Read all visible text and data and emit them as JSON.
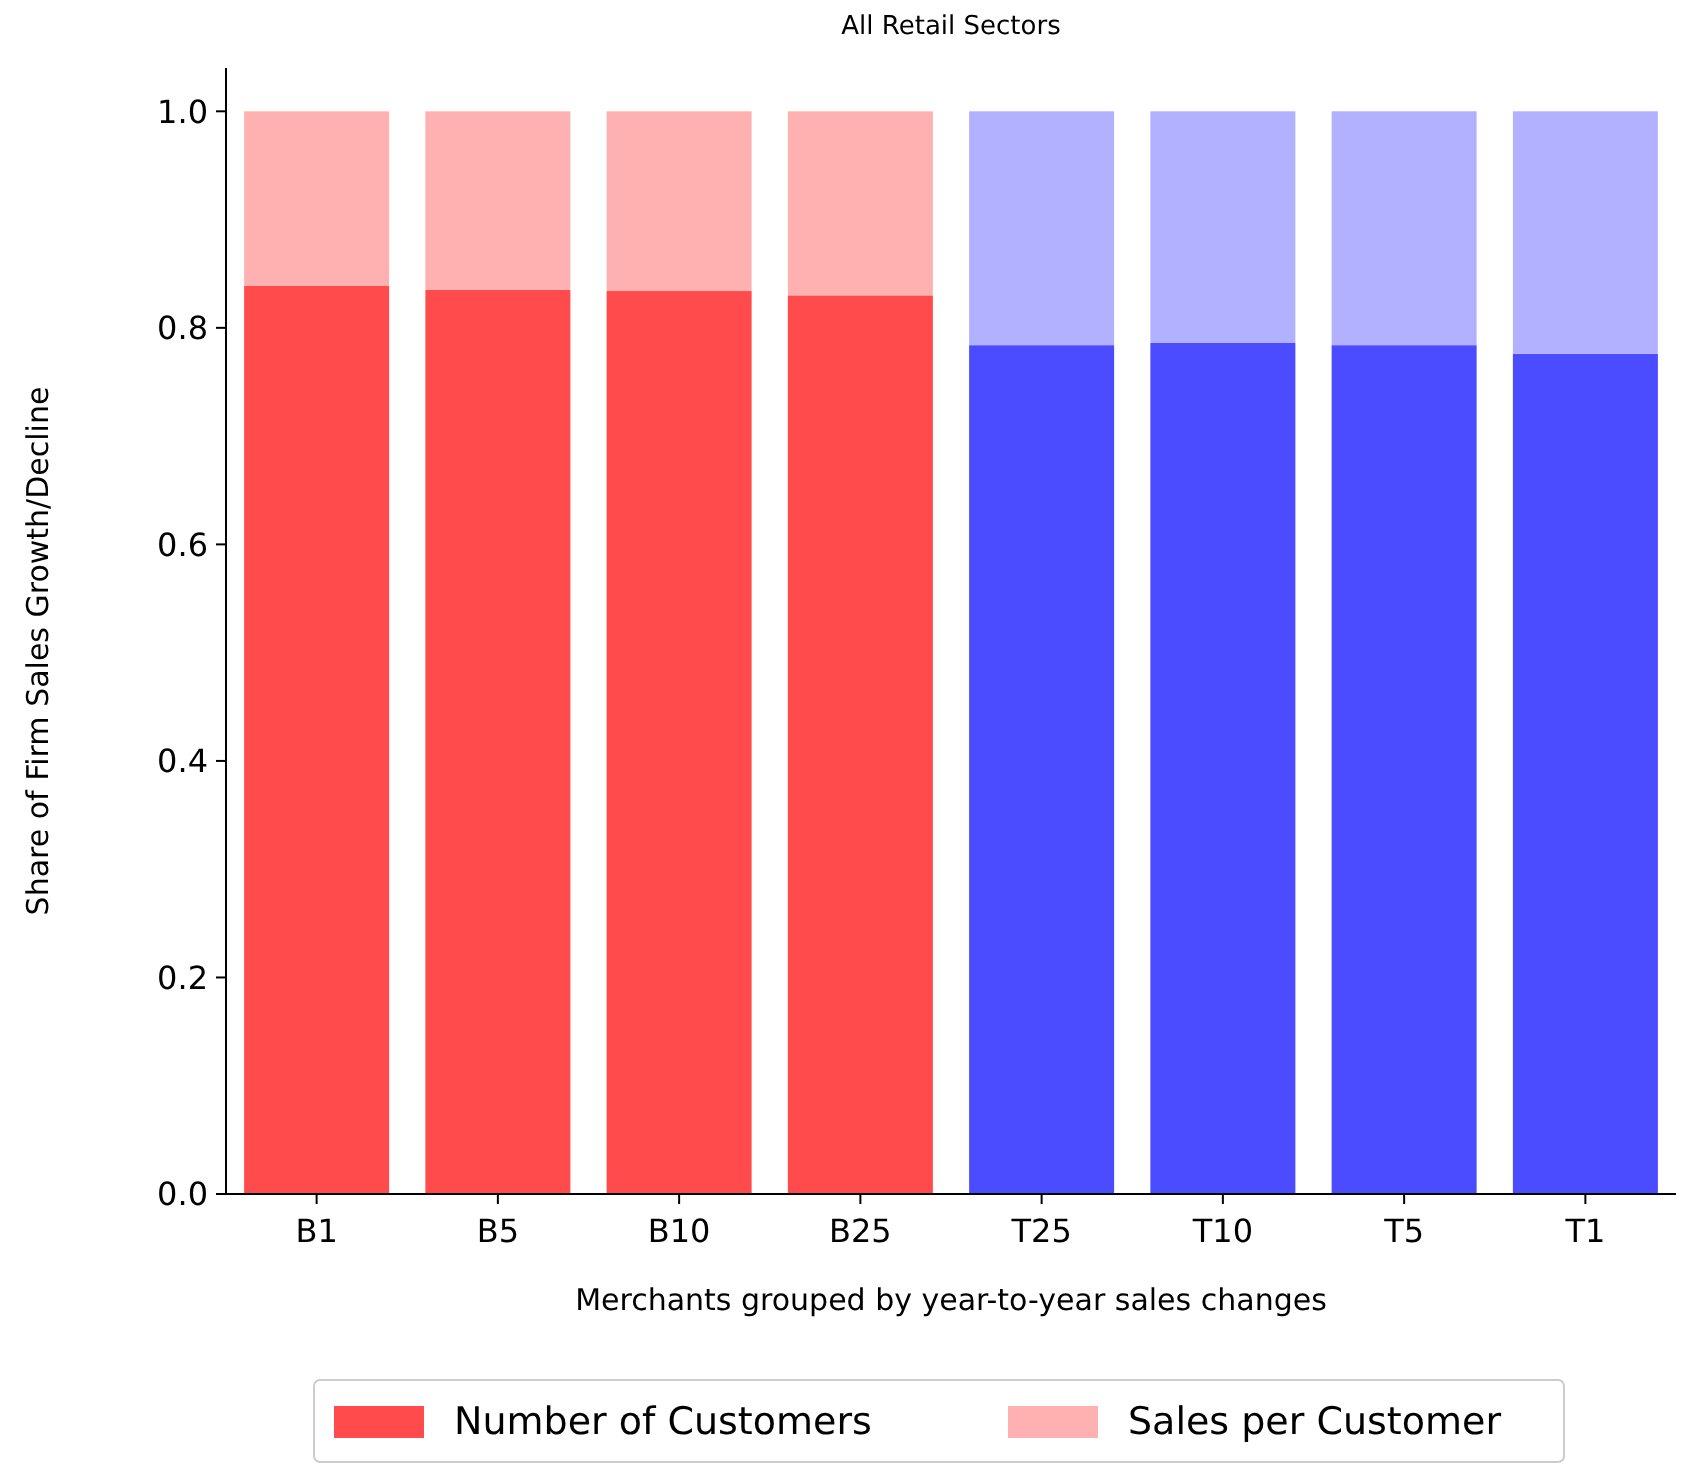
{
  "chart_data": {
    "type": "bar",
    "title": "All Retail Sectors",
    "xlabel": "Merchants grouped by year-to-year sales changes",
    "ylabel": "Share of Firm Sales Growth/Decline",
    "categories": [
      "B1",
      "B5",
      "B10",
      "B25",
      "T25",
      "T10",
      "T5",
      "T1"
    ],
    "stacked": true,
    "series": [
      {
        "name": "Number of Customers",
        "color": "#ff4b4b",
        "colors": [
          "#ff4b4b",
          "#ff4b4b",
          "#ff4b4b",
          "#ff4b4b",
          "#4b4bff",
          "#4b4bff",
          "#4b4bff",
          "#4b4bff"
        ],
        "values": [
          0.839,
          0.835,
          0.834,
          0.83,
          0.784,
          0.786,
          0.784,
          0.776
        ]
      },
      {
        "name": "Sales per Customer",
        "color": "#ffb1b1",
        "colors": [
          "#ffb1b1",
          "#ffb1b1",
          "#ffb1b1",
          "#ffb1b1",
          "#b1b1ff",
          "#b1b1ff",
          "#b1b1ff",
          "#b1b1ff"
        ],
        "values": [
          0.161,
          0.165,
          0.166,
          0.17,
          0.216,
          0.214,
          0.216,
          0.224
        ]
      }
    ],
    "ylim": [
      0,
      1.04
    ],
    "yticks": [
      {
        "value": 0,
        "label": "0.0"
      },
      0.2,
      0.4,
      0.6,
      0.8,
      {
        "value": 1,
        "label": "1.0"
      }
    ],
    "grid": false,
    "legend": "bottom"
  }
}
